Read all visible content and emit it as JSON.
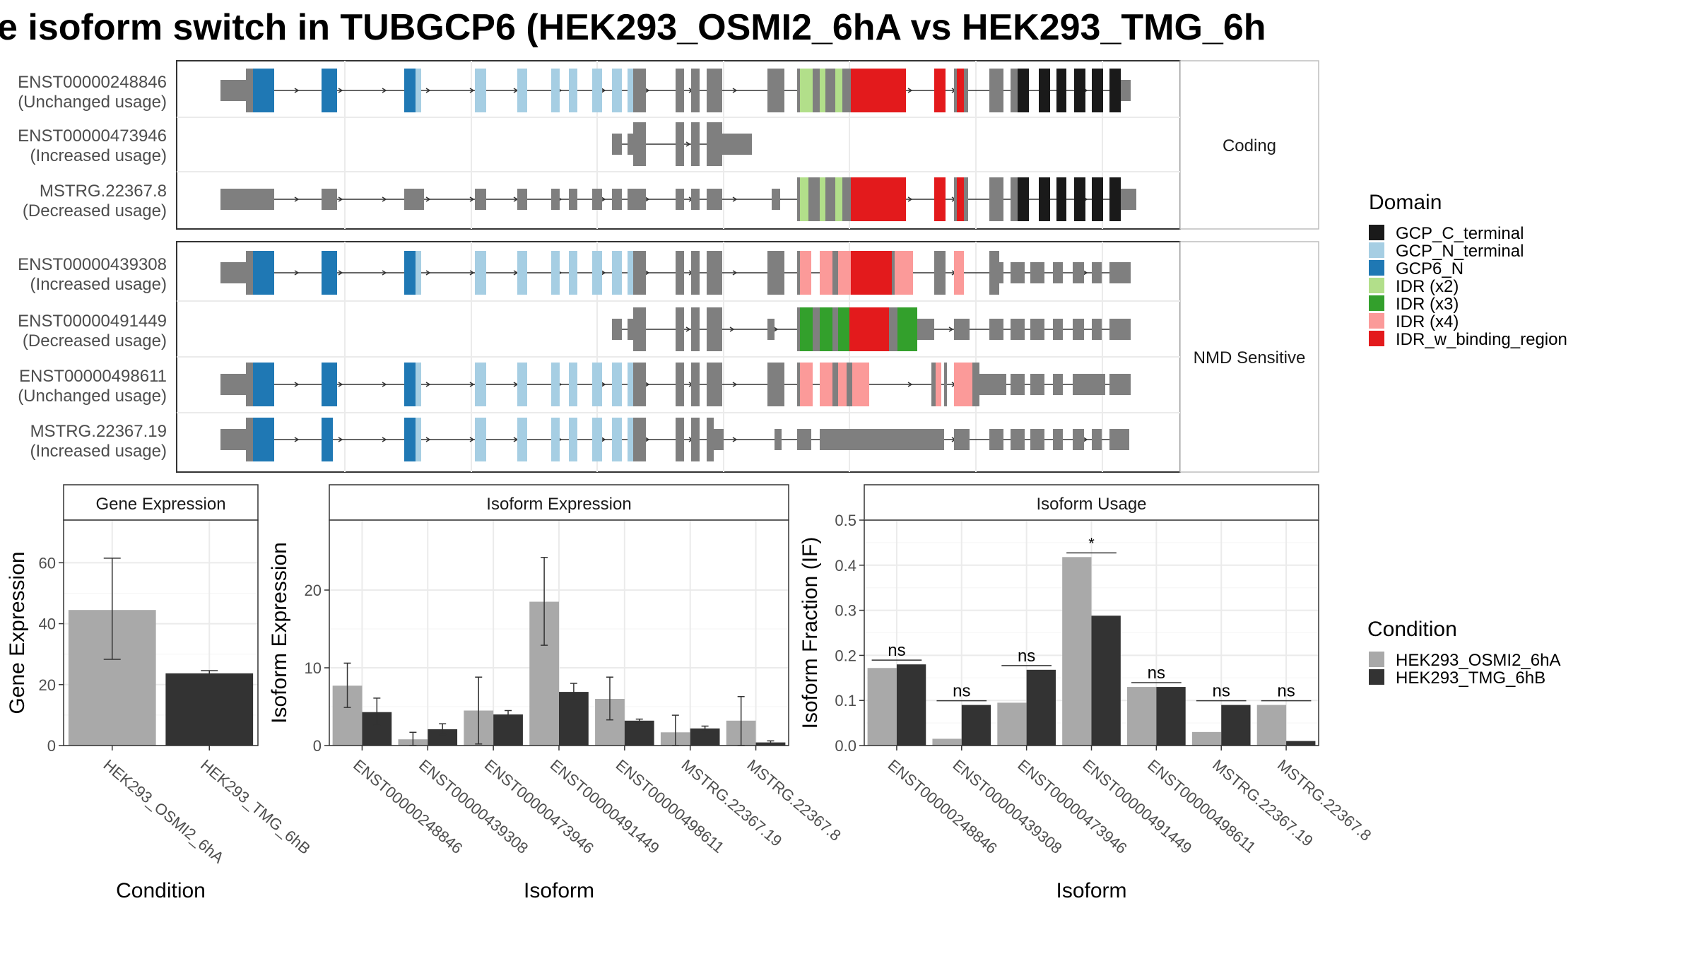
{
  "title": "e isoform switch in TUBGCP6 (HEK293_OSMI2_6hA vs HEK293_TMG_6h",
  "colors": {
    "GCP_C_terminal": "#1a1a1a",
    "GCP_N_terminal": "#a6cee3",
    "GCP6_N": "#1f78b4",
    "IDR_x2": "#b2df8a",
    "IDR_x3": "#33a02c",
    "IDR_x4": "#fb9a99",
    "IDR_w_binding_region": "#e31a1c",
    "exon": "#7f7f7f",
    "cond_a": "#a9a9a9",
    "cond_b": "#333333"
  },
  "structure": {
    "coding_label": "Coding",
    "nmd_label": "NMD Sensitive",
    "transcripts": [
      {
        "id": "ENST00000248846",
        "usage": "(Unchanged usage)"
      },
      {
        "id": "ENST00000473946",
        "usage": "(Increased usage)"
      },
      {
        "id": "MSTRG.22367.8",
        "usage": "(Decreased usage)"
      },
      {
        "id": "ENST00000439308",
        "usage": "(Increased usage)"
      },
      {
        "id": "ENST00000491449",
        "usage": "(Decreased usage)"
      },
      {
        "id": "ENST00000498611",
        "usage": "(Unchanged usage)"
      },
      {
        "id": "MSTRG.22367.19",
        "usage": "(Increased usage)"
      }
    ]
  },
  "legend_domain": {
    "title": "Domain",
    "items": [
      {
        "label": "GCP_C_terminal",
        "color": "#1a1a1a"
      },
      {
        "label": "GCP_N_terminal",
        "color": "#a6cee3"
      },
      {
        "label": "GCP6_N",
        "color": "#1f78b4"
      },
      {
        "label": "IDR (x2)",
        "color": "#b2df8a"
      },
      {
        "label": "IDR (x3)",
        "color": "#33a02c"
      },
      {
        "label": "IDR (x4)",
        "color": "#fb9a99"
      },
      {
        "label": "IDR_w_binding_region",
        "color": "#e31a1c"
      }
    ]
  },
  "legend_condition": {
    "title": "Condition",
    "items": [
      {
        "label": "HEK293_OSMI2_6hA",
        "color": "#a9a9a9"
      },
      {
        "label": "HEK293_TMG_6hB",
        "color": "#333333"
      }
    ]
  },
  "chart_data": [
    {
      "type": "bar",
      "title": "Gene Expression",
      "xlabel": "Condition",
      "ylabel": "Gene Expression",
      "ylim": [
        0,
        74
      ],
      "yticks": [
        0,
        20,
        40,
        60
      ],
      "categories": [
        "HEK293_OSMI2_6hA",
        "HEK293_TMG_6hB"
      ],
      "values": [
        44.5,
        23.7
      ],
      "errors": [
        [
          28.3,
          61.5
        ],
        [
          22.9,
          24.6
        ]
      ]
    },
    {
      "type": "bar",
      "title": "Isoform Expression",
      "xlabel": "Isoform",
      "ylabel": "Isoform Expression",
      "ylim": [
        0,
        29
      ],
      "yticks": [
        0,
        10,
        20
      ],
      "categories": [
        "ENST00000248846",
        "ENST00000439308",
        "ENST00000473946",
        "ENST00000491449",
        "ENST00000498611",
        "MSTRG.22367.19",
        "MSTRG.22367.8"
      ],
      "series": [
        {
          "name": "HEK293_OSMI2_6hA",
          "values": [
            7.7,
            0.8,
            4.5,
            18.5,
            6.0,
            1.7,
            3.2
          ],
          "errors": [
            [
              4.9,
              10.6
            ],
            [
              0.0,
              1.7
            ],
            [
              0.2,
              8.8
            ],
            [
              12.9,
              24.2
            ],
            [
              3.3,
              8.8
            ],
            [
              0.0,
              3.9
            ],
            [
              0.0,
              6.3
            ]
          ]
        },
        {
          "name": "HEK293_TMG_6hB",
          "values": [
            4.3,
            2.1,
            4.0,
            6.9,
            3.2,
            2.2,
            0.4
          ],
          "errors": [
            [
              2.6,
              6.1
            ],
            [
              1.4,
              2.8
            ],
            [
              3.5,
              4.5
            ],
            [
              5.9,
              8.0
            ],
            [
              2.9,
              3.4
            ],
            [
              1.9,
              2.5
            ],
            [
              0.1,
              0.6
            ]
          ]
        }
      ]
    },
    {
      "type": "bar",
      "title": "Isoform Usage",
      "xlabel": "Isoform",
      "ylabel": "Isoform Fraction (IF)",
      "ylim": [
        0,
        0.5
      ],
      "yticks": [
        0.0,
        0.1,
        0.2,
        0.3,
        0.4,
        0.5
      ],
      "categories": [
        "ENST00000248846",
        "ENST00000439308",
        "ENST00000473946",
        "ENST00000491449",
        "ENST00000498611",
        "MSTRG.22367.19",
        "MSTRG.22367.8"
      ],
      "series": [
        {
          "name": "HEK293_OSMI2_6hA",
          "values": [
            0.172,
            0.015,
            0.095,
            0.418,
            0.13,
            0.03,
            0.09
          ]
        },
        {
          "name": "HEK293_TMG_6hB",
          "values": [
            0.18,
            0.09,
            0.168,
            0.288,
            0.13,
            0.09,
            0.01
          ]
        }
      ],
      "significance": [
        "ns",
        "ns",
        "ns",
        "*",
        "ns",
        "ns",
        "ns"
      ]
    }
  ]
}
